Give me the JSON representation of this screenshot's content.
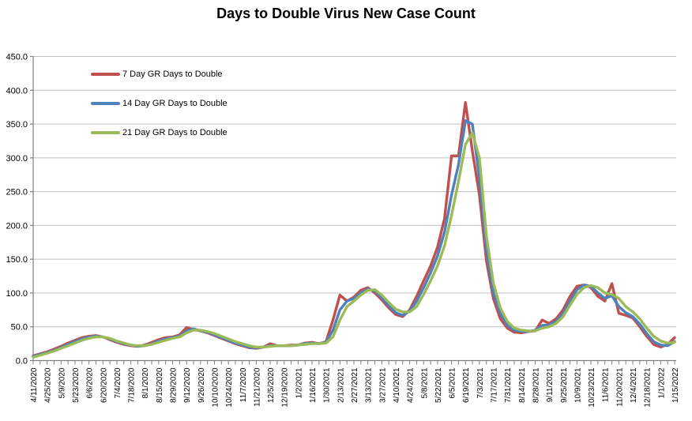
{
  "chart_data": {
    "type": "line",
    "title": "Days to Double Virus New Case Count",
    "xlabel": "",
    "ylabel": "",
    "ylim": [
      0,
      450
    ],
    "y_tick_step": 50,
    "y_tick_labels": [
      "0.0",
      "50.0",
      "100.0",
      "150.0",
      "200.0",
      "250.0",
      "300.0",
      "350.0",
      "400.0",
      "450.0"
    ],
    "grid": "horizontal",
    "gridline_color": "#C0C0C0",
    "axis_color": "#808080",
    "legend_position": "top-left-inside",
    "x_labels_shown_every": 2,
    "x": [
      "4/11/2020",
      "4/18/2020",
      "4/25/2020",
      "5/2/2020",
      "5/9/2020",
      "5/16/2020",
      "5/23/2020",
      "5/30/2020",
      "6/6/2020",
      "6/13/2020",
      "6/20/2020",
      "6/27/2020",
      "7/4/2020",
      "7/11/2020",
      "7/18/2020",
      "7/25/2020",
      "8/1/2020",
      "8/8/2020",
      "8/15/2020",
      "8/22/2020",
      "8/29/2020",
      "9/5/2020",
      "9/12/2020",
      "9/19/2020",
      "9/26/2020",
      "10/3/2020",
      "10/10/2020",
      "10/17/2020",
      "10/24/2020",
      "10/31/2020",
      "11/7/2020",
      "11/14/2020",
      "11/21/2020",
      "11/28/2020",
      "12/5/2020",
      "12/12/2020",
      "12/19/2020",
      "12/26/2020",
      "1/2/2021",
      "1/9/2021",
      "1/16/2021",
      "1/23/2021",
      "1/30/2021",
      "2/6/2021",
      "2/13/2021",
      "2/20/2021",
      "2/27/2021",
      "3/6/2021",
      "3/13/2021",
      "3/20/2021",
      "3/27/2021",
      "4/3/2021",
      "4/10/2021",
      "4/17/2021",
      "4/24/2021",
      "5/1/2021",
      "5/8/2021",
      "5/15/2021",
      "5/22/2021",
      "5/29/2021",
      "6/5/2021",
      "6/12/2021",
      "6/19/2021",
      "6/26/2021",
      "7/3/2021",
      "7/10/2021",
      "7/17/2021",
      "7/24/2021",
      "7/31/2021",
      "8/7/2021",
      "8/14/2021",
      "8/21/2021",
      "8/28/2021",
      "9/4/2021",
      "9/11/2021",
      "9/18/2021",
      "9/25/2021",
      "10/2/2021",
      "10/9/2021",
      "10/16/2021",
      "10/23/2021",
      "10/30/2021",
      "11/6/2021",
      "11/13/2021",
      "11/20/2021",
      "11/27/2021",
      "12/4/2021",
      "12/11/2021",
      "12/18/2021",
      "12/25/2021",
      "1/1/2022",
      "1/8/2022",
      "1/15/2022"
    ],
    "series": [
      {
        "name": "7 Day GR Days to Double",
        "color": "#C0504D",
        "values": [
          7,
          10,
          13,
          17,
          21,
          26,
          30,
          34,
          36,
          37,
          35,
          31,
          27,
          24,
          22,
          21,
          23,
          27,
          31,
          34,
          35,
          38,
          49,
          46,
          44,
          41,
          37,
          33,
          29,
          25,
          22,
          19,
          18,
          20,
          25,
          22,
          22,
          23,
          23,
          26,
          27,
          25,
          28,
          60,
          97,
          88,
          94,
          104,
          108,
          100,
          90,
          78,
          68,
          65,
          75,
          95,
          118,
          140,
          168,
          210,
          303,
          303,
          382,
          310,
          245,
          148,
          92,
          62,
          48,
          42,
          41,
          43,
          44,
          60,
          55,
          62,
          75,
          95,
          110,
          112,
          108,
          95,
          88,
          114,
          70,
          67,
          63,
          50,
          36,
          24,
          20,
          24,
          34
        ]
      },
      {
        "name": "14 Day GR Days to Double",
        "color": "#4F81BD",
        "values": [
          6,
          9,
          12,
          15,
          19,
          24,
          28,
          32,
          35,
          36,
          35,
          32,
          28,
          25,
          23,
          21,
          22,
          25,
          29,
          32,
          34,
          36,
          44,
          47,
          44,
          42,
          38,
          34,
          30,
          26,
          23,
          20,
          19,
          20,
          22,
          22,
          22,
          22,
          23,
          25,
          26,
          25,
          27,
          45,
          75,
          88,
          92,
          100,
          106,
          103,
          93,
          81,
          71,
          67,
          73,
          88,
          108,
          130,
          155,
          190,
          245,
          290,
          355,
          350,
          270,
          165,
          100,
          70,
          52,
          45,
          43,
          43,
          45,
          52,
          53,
          58,
          70,
          88,
          105,
          112,
          110,
          100,
          92,
          96,
          80,
          71,
          65,
          54,
          40,
          28,
          23,
          22,
          28
        ]
      },
      {
        "name": "21 Day GR Days to Double",
        "color": "#9BBB59",
        "values": [
          5,
          8,
          11,
          14,
          18,
          22,
          26,
          30,
          33,
          35,
          35,
          33,
          29,
          26,
          23,
          22,
          22,
          24,
          27,
          30,
          33,
          35,
          41,
          45,
          45,
          43,
          40,
          36,
          32,
          28,
          25,
          22,
          20,
          20,
          21,
          22,
          22,
          22,
          23,
          24,
          25,
          25,
          26,
          35,
          60,
          80,
          88,
          97,
          104,
          105,
          97,
          86,
          76,
          72,
          72,
          80,
          98,
          118,
          140,
          170,
          215,
          265,
          320,
          337,
          300,
          185,
          115,
          78,
          58,
          48,
          45,
          44,
          44,
          48,
          50,
          55,
          65,
          82,
          98,
          108,
          111,
          108,
          100,
          98,
          92,
          80,
          72,
          62,
          48,
          36,
          29,
          26,
          27
        ]
      }
    ]
  }
}
